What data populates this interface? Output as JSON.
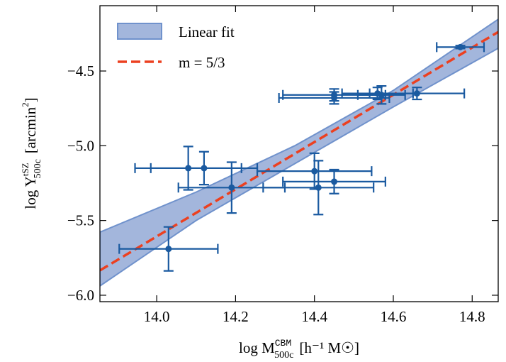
{
  "chart_data": {
    "type": "scatter",
    "xlabel": {
      "text": "log M",
      "sup": "CBM",
      "sub": "500c",
      "unit": "[h⁻¹ M☉]"
    },
    "ylabel": {
      "text": "log Y",
      "sup": "tSZ",
      "sub": "500c",
      "unit": "[arcmin",
      "unit_sup": "2",
      "unit_end": "]"
    },
    "xlim": [
      13.856,
      14.866
    ],
    "ylim": [
      -6.043,
      -4.063
    ],
    "xticks": [
      {
        "value": 14,
        "label": "14.0"
      },
      14.2,
      14.4,
      14.6,
      14.8
    ],
    "yticks": [
      {
        "value": -6,
        "label": "−6.0"
      },
      {
        "value": -5.5,
        "label": "−5.5"
      },
      {
        "value": -5,
        "label": "−5.0"
      },
      {
        "value": -4.5,
        "label": "−4.5"
      }
    ],
    "legend": "upper left",
    "series": [
      {
        "name": "Linear fit",
        "type": "band",
        "color": "#a3b6dc",
        "edgecolor": "#7092cc",
        "x": [
          13.856,
          14.1,
          14.35,
          14.6,
          14.866
        ],
        "upper": [
          -5.578,
          -5.31,
          -5.0,
          -4.63,
          -4.154
        ],
        "lower": [
          -5.938,
          -5.5,
          -5.12,
          -4.74,
          -4.348
        ]
      },
      {
        "name": "m = 5/3",
        "type": "line",
        "color": "#ec4020",
        "linestyle": "dashed",
        "x": [
          13.856,
          14.866
        ],
        "y": [
          -5.834,
          -4.239
        ]
      },
      {
        "type": "errorbar",
        "color": "#1a5aa0",
        "x": [
          14.03,
          14.08,
          14.12,
          14.19,
          14.4,
          14.41,
          14.45,
          14.45,
          14.45,
          14.56,
          14.57,
          14.66,
          14.77
        ],
        "y": [
          -5.69,
          -5.15,
          -5.15,
          -5.28,
          -5.17,
          -5.28,
          -5.24,
          -4.66,
          -4.68,
          -4.65,
          -4.66,
          -4.65,
          -4.34
        ],
        "xerr": [
          0.125,
          0.135,
          0.135,
          0.135,
          0.145,
          0.14,
          0.13,
          0.13,
          0.14,
          0.09,
          0.06,
          0.12,
          0.06
        ],
        "yerr": [
          0.147,
          0.145,
          0.11,
          0.17,
          0.12,
          0.18,
          0.08,
          0.04,
          0.04,
          0.04,
          0.06,
          0.04,
          0.01
        ]
      }
    ]
  }
}
